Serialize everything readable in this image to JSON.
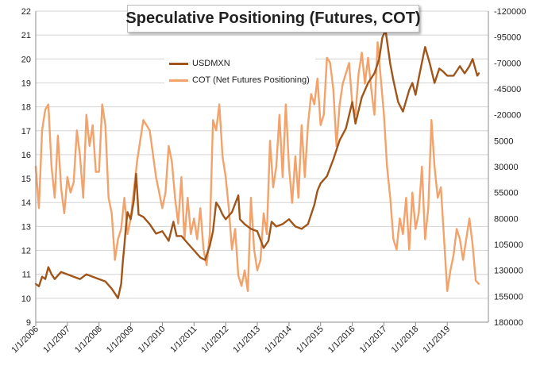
{
  "chart_data": {
    "type": "line",
    "title": "Speculative Positioning (Futures, COT)",
    "x_tick_labels": [
      "1/1/2006",
      "1/1/2007",
      "1/1/2008",
      "1/1/2009",
      "1/1/2010",
      "1/1/2011",
      "1/1/2012",
      "1/1/2013",
      "1/1/2014",
      "1/1/2015",
      "1/1/2016",
      "1/1/2017",
      "1/1/2018",
      "1/1/2019"
    ],
    "x_range": [
      2006.0,
      2020.3
    ],
    "y_left": {
      "min": 9,
      "max": 22,
      "ticks": [
        "9",
        "10",
        "11",
        "12",
        "13",
        "14",
        "15",
        "16",
        "17",
        "18",
        "19",
        "20",
        "21",
        "22"
      ]
    },
    "y_right": {
      "min": -120000,
      "max": 180000,
      "inverted": true,
      "ticks": [
        "-120000",
        "-95000",
        "-70000",
        "-45000",
        "-20000",
        "5000",
        "30000",
        "55000",
        "80000",
        "105000",
        "130000",
        "155000",
        "180000"
      ]
    },
    "grid": "horizontal",
    "legend_position": "top-left",
    "series": [
      {
        "name": "USDMXN",
        "axis": "left",
        "color": "#a0551b",
        "x": [
          2006.0,
          2006.1,
          2006.2,
          2006.3,
          2006.4,
          2006.5,
          2006.6,
          2006.8,
          2007.0,
          2007.2,
          2007.4,
          2007.6,
          2007.8,
          2008.0,
          2008.2,
          2008.4,
          2008.5,
          2008.6,
          2008.7,
          2008.75,
          2008.8,
          2008.85,
          2008.9,
          2009.0,
          2009.1,
          2009.17,
          2009.25,
          2009.4,
          2009.6,
          2009.8,
          2010.0,
          2010.2,
          2010.35,
          2010.45,
          2010.6,
          2010.8,
          2011.0,
          2011.2,
          2011.35,
          2011.5,
          2011.6,
          2011.7,
          2011.8,
          2011.9,
          2012.0,
          2012.2,
          2012.4,
          2012.45,
          2012.6,
          2012.8,
          2013.0,
          2013.2,
          2013.35,
          2013.45,
          2013.6,
          2013.8,
          2014.0,
          2014.2,
          2014.4,
          2014.6,
          2014.8,
          2014.9,
          2015.0,
          2015.2,
          2015.4,
          2015.6,
          2015.8,
          2016.0,
          2016.1,
          2016.3,
          2016.5,
          2016.7,
          2016.85,
          2016.95,
          2017.05,
          2017.2,
          2017.3,
          2017.45,
          2017.6,
          2017.8,
          2017.9,
          2018.0,
          2018.1,
          2018.3,
          2018.45,
          2018.6,
          2018.75,
          2018.85,
          2019.0,
          2019.2,
          2019.4,
          2019.55,
          2019.7,
          2019.8,
          2019.95,
          2020.0
        ],
        "values": [
          10.6,
          10.5,
          10.9,
          10.8,
          11.3,
          11.0,
          10.8,
          11.1,
          11.0,
          10.9,
          10.8,
          11.0,
          10.9,
          10.8,
          10.7,
          10.4,
          10.2,
          10.0,
          10.6,
          11.5,
          12.2,
          13.0,
          13.6,
          13.3,
          14.1,
          15.2,
          13.5,
          13.4,
          13.1,
          12.7,
          12.8,
          12.4,
          13.2,
          12.6,
          12.6,
          12.3,
          12.0,
          11.7,
          11.6,
          12.2,
          12.8,
          14.0,
          13.8,
          13.5,
          13.3,
          13.6,
          14.3,
          13.3,
          13.1,
          12.9,
          12.8,
          12.1,
          12.4,
          13.2,
          13.0,
          13.1,
          13.3,
          13.0,
          12.9,
          13.1,
          13.9,
          14.5,
          14.8,
          15.1,
          15.8,
          16.6,
          17.1,
          18.2,
          17.3,
          18.4,
          19.0,
          19.4,
          20.0,
          20.9,
          21.2,
          19.8,
          19.1,
          18.2,
          17.8,
          18.7,
          19.0,
          18.5,
          19.2,
          20.5,
          19.8,
          19.0,
          19.6,
          19.5,
          19.3,
          19.3,
          19.7,
          19.4,
          19.7,
          20.0,
          19.3,
          19.4
        ]
      },
      {
        "name": "COT (Net Futures Positioning)",
        "axis": "right",
        "color": "#f2a26a",
        "x": [
          2006.0,
          2006.1,
          2006.2,
          2006.3,
          2006.4,
          2006.5,
          2006.6,
          2006.7,
          2006.8,
          2006.9,
          2007.0,
          2007.1,
          2007.2,
          2007.3,
          2007.4,
          2007.5,
          2007.6,
          2007.7,
          2007.8,
          2007.9,
          2008.0,
          2008.1,
          2008.2,
          2008.3,
          2008.4,
          2008.5,
          2008.6,
          2008.7,
          2008.8,
          2008.9,
          2009.0,
          2009.2,
          2009.4,
          2009.6,
          2009.8,
          2010.0,
          2010.1,
          2010.2,
          2010.3,
          2010.4,
          2010.5,
          2010.6,
          2010.7,
          2010.8,
          2010.9,
          2011.0,
          2011.1,
          2011.2,
          2011.3,
          2011.4,
          2011.5,
          2011.6,
          2011.7,
          2011.8,
          2011.9,
          2012.0,
          2012.1,
          2012.2,
          2012.3,
          2012.4,
          2012.5,
          2012.6,
          2012.7,
          2012.8,
          2012.9,
          2013.0,
          2013.1,
          2013.2,
          2013.3,
          2013.4,
          2013.5,
          2013.6,
          2013.7,
          2013.8,
          2013.9,
          2014.0,
          2014.1,
          2014.2,
          2014.3,
          2014.4,
          2014.5,
          2014.6,
          2014.7,
          2014.8,
          2014.9,
          2015.0,
          2015.1,
          2015.2,
          2015.3,
          2015.4,
          2015.5,
          2015.6,
          2015.7,
          2015.8,
          2015.9,
          2016.0,
          2016.1,
          2016.2,
          2016.3,
          2016.4,
          2016.5,
          2016.6,
          2016.7,
          2016.8,
          2016.9,
          2017.0,
          2017.1,
          2017.2,
          2017.3,
          2017.4,
          2017.5,
          2017.6,
          2017.7,
          2017.8,
          2017.9,
          2018.0,
          2018.1,
          2018.2,
          2018.3,
          2018.4,
          2018.5,
          2018.6,
          2018.7,
          2018.8,
          2018.9,
          2019.0,
          2019.1,
          2019.2,
          2019.3,
          2019.4,
          2019.5,
          2019.6,
          2019.7,
          2019.8,
          2019.9,
          2020.0
        ],
        "values": [
          30000,
          70000,
          -5000,
          -25000,
          -30000,
          30000,
          60000,
          0,
          50000,
          75000,
          40000,
          55000,
          45000,
          -5000,
          20000,
          60000,
          -20000,
          10000,
          -10000,
          35000,
          35000,
          -30000,
          -10000,
          60000,
          75000,
          120000,
          100000,
          90000,
          60000,
          95000,
          80000,
          25000,
          -15000,
          -5000,
          40000,
          70000,
          55000,
          10000,
          25000,
          60000,
          85000,
          40000,
          100000,
          60000,
          95000,
          80000,
          100000,
          70000,
          110000,
          125000,
          95000,
          -15000,
          -5000,
          -30000,
          20000,
          40000,
          70000,
          110000,
          90000,
          135000,
          145000,
          130000,
          150000,
          60000,
          110000,
          130000,
          120000,
          75000,
          95000,
          5000,
          50000,
          30000,
          -20000,
          40000,
          -30000,
          30000,
          65000,
          20000,
          60000,
          -10000,
          40000,
          -10000,
          -40000,
          -30000,
          -55000,
          -10000,
          -20000,
          -75000,
          -70000,
          -45000,
          10000,
          -30000,
          -50000,
          -60000,
          -70000,
          -30000,
          -20000,
          -60000,
          -80000,
          -50000,
          -75000,
          -45000,
          -20000,
          -90000,
          -55000,
          -20000,
          30000,
          60000,
          100000,
          110000,
          80000,
          95000,
          60000,
          110000,
          55000,
          90000,
          75000,
          30000,
          100000,
          70000,
          -15000,
          30000,
          60000,
          50000,
          100000,
          150000,
          130000,
          115000,
          90000,
          100000,
          120000,
          100000,
          80000,
          105000,
          140000,
          143000
        ]
      }
    ]
  }
}
